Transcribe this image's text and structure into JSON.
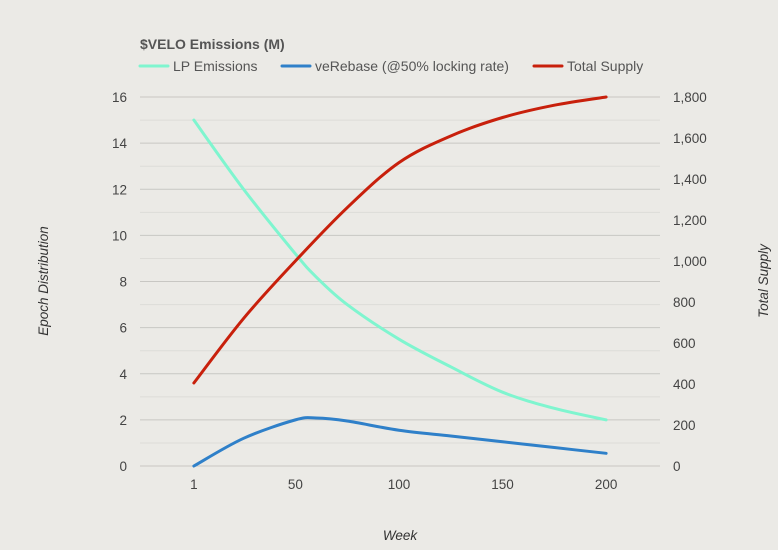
{
  "chart_data": {
    "type": "line",
    "title": "$VELO Emissions (M)",
    "xlabel": "Week",
    "ylabel_left": "Epoch Distribution",
    "ylabel_right": "Total Supply",
    "x_ticks": [
      1,
      50,
      100,
      150,
      200
    ],
    "xlim": [
      -25,
      226
    ],
    "ylim_left": [
      0,
      16
    ],
    "y_ticks_left": [
      "0",
      "2",
      "4",
      "6",
      "8",
      "10",
      "12",
      "14",
      "16"
    ],
    "ylim_right": [
      0,
      1800
    ],
    "y_ticks_right": [
      "0",
      "200",
      "400",
      "600",
      "800",
      "1,000",
      "1,200",
      "1,400",
      "1,600",
      "1,800"
    ],
    "grid": true,
    "legend_position": "top",
    "series": [
      {
        "name": "LP Emissions",
        "axis": "left",
        "color": "#7ff5cf",
        "x": [
          1,
          25,
          50,
          60,
          75,
          100,
          125,
          150,
          175,
          200
        ],
        "y": [
          15.0,
          12.0,
          9.2,
          8.2,
          7.0,
          5.5,
          4.3,
          3.2,
          2.5,
          2.0
        ]
      },
      {
        "name": "veRebase (@50% locking rate)",
        "axis": "left",
        "color": "#2f80c9",
        "x": [
          1,
          25,
          50,
          60,
          75,
          100,
          125,
          150,
          175,
          200
        ],
        "y": [
          0.0,
          1.2,
          2.0,
          2.08,
          1.95,
          1.55,
          1.3,
          1.05,
          0.8,
          0.55
        ]
      },
      {
        "name": "Total Supply",
        "axis": "right",
        "color": "#c8200c",
        "x": [
          1,
          25,
          50,
          75,
          100,
          125,
          150,
          175,
          200
        ],
        "y": [
          405,
          720,
          1000,
          1260,
          1480,
          1610,
          1700,
          1760,
          1800
        ]
      }
    ]
  }
}
